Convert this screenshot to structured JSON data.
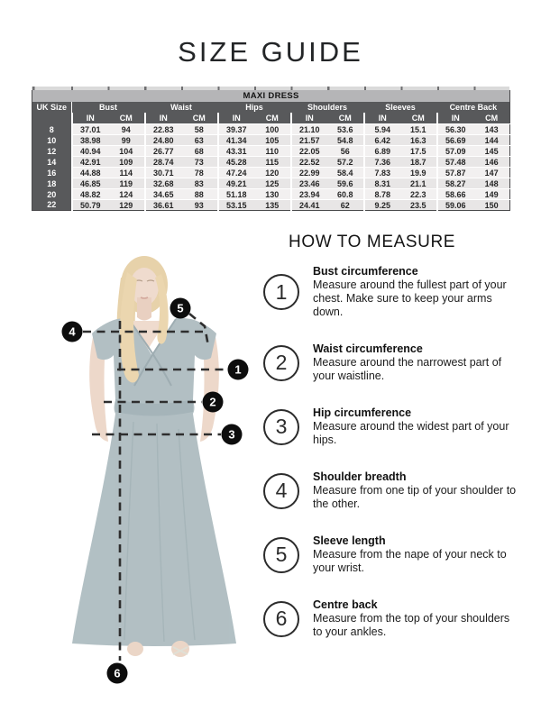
{
  "page": {
    "title": "SIZE GUIDE"
  },
  "size_table": {
    "title": "MAXI DRESS",
    "corner_label": "UK Size",
    "groups": [
      "Bust",
      "Waist",
      "Hips",
      "Shoulders",
      "Sleeves",
      "Centre Back"
    ],
    "units": [
      "IN",
      "CM"
    ],
    "rows": [
      {
        "size": "8",
        "values": [
          "37.01",
          "94",
          "22.83",
          "58",
          "39.37",
          "100",
          "21.10",
          "53.6",
          "5.94",
          "15.1",
          "56.30",
          "143"
        ]
      },
      {
        "size": "10",
        "values": [
          "38.98",
          "99",
          "24.80",
          "63",
          "41.34",
          "105",
          "21.57",
          "54.8",
          "6.42",
          "16.3",
          "56.69",
          "144"
        ]
      },
      {
        "size": "12",
        "values": [
          "40.94",
          "104",
          "26.77",
          "68",
          "43.31",
          "110",
          "22.05",
          "56",
          "6.89",
          "17.5",
          "57.09",
          "145"
        ]
      },
      {
        "size": "14",
        "values": [
          "42.91",
          "109",
          "28.74",
          "73",
          "45.28",
          "115",
          "22.52",
          "57.2",
          "7.36",
          "18.7",
          "57.48",
          "146"
        ]
      },
      {
        "size": "16",
        "values": [
          "44.88",
          "114",
          "30.71",
          "78",
          "47.24",
          "120",
          "22.99",
          "58.4",
          "7.83",
          "19.9",
          "57.87",
          "147"
        ]
      },
      {
        "size": "18",
        "values": [
          "46.85",
          "119",
          "32.68",
          "83",
          "49.21",
          "125",
          "23.46",
          "59.6",
          "8.31",
          "21.1",
          "58.27",
          "148"
        ]
      },
      {
        "size": "20",
        "values": [
          "48.82",
          "124",
          "34.65",
          "88",
          "51.18",
          "130",
          "23.94",
          "60.8",
          "8.78",
          "22.3",
          "58.66",
          "149"
        ]
      },
      {
        "size": "22",
        "values": [
          "50.79",
          "129",
          "36.61",
          "93",
          "53.15",
          "135",
          "24.41",
          "62",
          "9.25",
          "23.5",
          "59.06",
          "150"
        ]
      }
    ]
  },
  "how_to_measure": {
    "title": "HOW TO MEASURE",
    "items": [
      {
        "number": "1",
        "heading": "Bust circumference",
        "text": "Measure around the fullest part of your chest. Make sure to keep your arms down."
      },
      {
        "number": "2",
        "heading": "Waist circumference",
        "text": "Measure around the narrowest part of your waistline."
      },
      {
        "number": "3",
        "heading": "Hip circumference",
        "text": "Measure around the widest part of your hips."
      },
      {
        "number": "4",
        "heading": "Shoulder breadth",
        "text": "Measure from one tip of your shoulder to the other."
      },
      {
        "number": "5",
        "heading": "Sleeve length",
        "text": "Measure from the nape of your neck to your wrist."
      },
      {
        "number": "6",
        "heading": "Centre back",
        "text": "Measure from the top of your shoulders to your ankles."
      }
    ]
  },
  "diagram": {
    "description": "model wearing teal maxi dress with numbered measurement lines",
    "colors": {
      "dress": "#9fb0b5",
      "dash_line": "#2e2e2e",
      "marker_bg": "#0d0d0d",
      "marker_text": "#ffffff"
    }
  },
  "colors": {
    "table_title_bg": "#b5b5b7",
    "table_header_bg": "#58595b",
    "table_header_text": "#ffffff",
    "row_light": "#f2f0f0",
    "row_dark": "#e8e6e6"
  }
}
